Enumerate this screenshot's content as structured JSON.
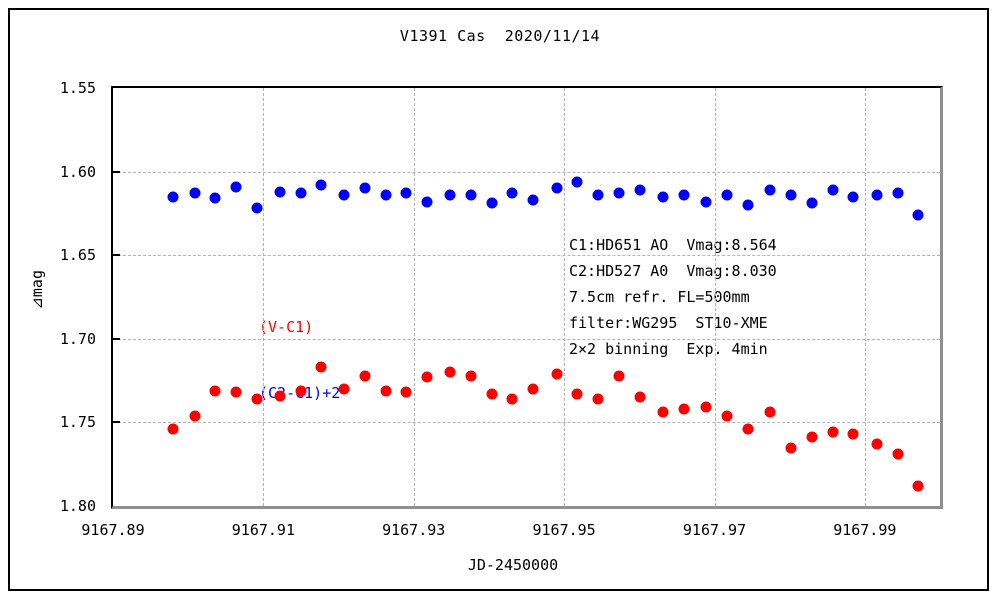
{
  "title": "V1391 Cas  2020/11/14",
  "axes": {
    "x_label": "JD-2450000",
    "y_label": "⊿mag",
    "x_min": 9167.89,
    "x_max": 9168.0,
    "y_min": 1.55,
    "y_max": 1.8,
    "x_ticks": [
      {
        "value": 9167.89,
        "label": "9167.89"
      },
      {
        "value": 9167.91,
        "label": "9167.91"
      },
      {
        "value": 9167.93,
        "label": "9167.93"
      },
      {
        "value": 9167.95,
        "label": "9167.95"
      },
      {
        "value": 9167.97,
        "label": "9167.97"
      },
      {
        "value": 9167.99,
        "label": "9167.99"
      }
    ],
    "y_ticks": [
      {
        "value": 1.55,
        "label": "1.55"
      },
      {
        "value": 1.6,
        "label": "1.60"
      },
      {
        "value": 1.65,
        "label": "1.65"
      },
      {
        "value": 1.7,
        "label": "1.70"
      },
      {
        "value": 1.75,
        "label": "1.75"
      },
      {
        "value": 1.8,
        "label": "1.80"
      }
    ]
  },
  "legend": [
    {
      "label": "(V-C1)",
      "color": "#ff0000"
    },
    {
      "label": "(C2-C1)+2",
      "color": "#0000ff"
    }
  ],
  "annotation_lines": [
    "C1:HD651 AO  Vmag:8.564",
    "C2:HD527 A0  Vmag:8.030",
    "7.5cm refr. FL=500mm",
    "filter:WG295  ST10-XME",
    "2×2 binning  Exp. 4min"
  ],
  "colors": {
    "grid": "#b4b4b4",
    "axis_dark": "#000000",
    "axis_shadow": "#8f8f8f",
    "series_v_c1": "#ff0000",
    "series_c2_c1": "#0000ff"
  },
  "chart_data": {
    "type": "scatter",
    "title": "V1391 Cas 2020/11/14",
    "xlabel": "JD-2450000",
    "ylabel": "⊿mag",
    "xlim": [
      9167.89,
      9168.0
    ],
    "ylim": [
      1.8,
      1.55
    ],
    "y_axis_inverted": true,
    "grid": "dashed",
    "x": [
      9167.898,
      9167.9009,
      9167.9036,
      9167.9064,
      9167.9092,
      9167.9122,
      9167.915,
      9167.9177,
      9167.9207,
      9167.9235,
      9167.9263,
      9167.929,
      9167.9318,
      9167.9348,
      9167.9376,
      9167.9404,
      9167.9431,
      9167.9459,
      9167.949,
      9167.9517,
      9167.9545,
      9167.9573,
      9167.9601,
      9167.9632,
      9167.9659,
      9167.9689,
      9167.9717,
      9167.9745,
      9167.9774,
      9167.9802,
      9167.983,
      9167.9858,
      9167.9884,
      9167.9916,
      9167.9944,
      9167.9971
    ],
    "series": [
      {
        "name": "(V-C1)",
        "color": "#ff0000",
        "values": [
          1.754,
          1.746,
          1.731,
          1.732,
          1.736,
          1.734,
          1.731,
          1.717,
          1.73,
          1.722,
          1.731,
          1.732,
          1.723,
          1.72,
          1.722,
          1.733,
          1.736,
          1.73,
          1.721,
          1.733,
          1.736,
          1.722,
          1.735,
          1.744,
          1.742,
          1.741,
          1.746,
          1.754,
          1.744,
          1.765,
          1.759,
          1.756,
          1.757,
          1.763,
          1.769,
          1.788
        ]
      },
      {
        "name": "(C2-C1)+2",
        "color": "#0000ff",
        "values": [
          1.615,
          1.613,
          1.616,
          1.609,
          1.622,
          1.612,
          1.613,
          1.608,
          1.614,
          1.61,
          1.614,
          1.613,
          1.618,
          1.614,
          1.614,
          1.619,
          1.613,
          1.617,
          1.61,
          1.606,
          1.614,
          1.613,
          1.611,
          1.615,
          1.614,
          1.618,
          1.614,
          1.62,
          1.611,
          1.614,
          1.619,
          1.611,
          1.615,
          1.614,
          1.613,
          1.626
        ]
      }
    ]
  }
}
